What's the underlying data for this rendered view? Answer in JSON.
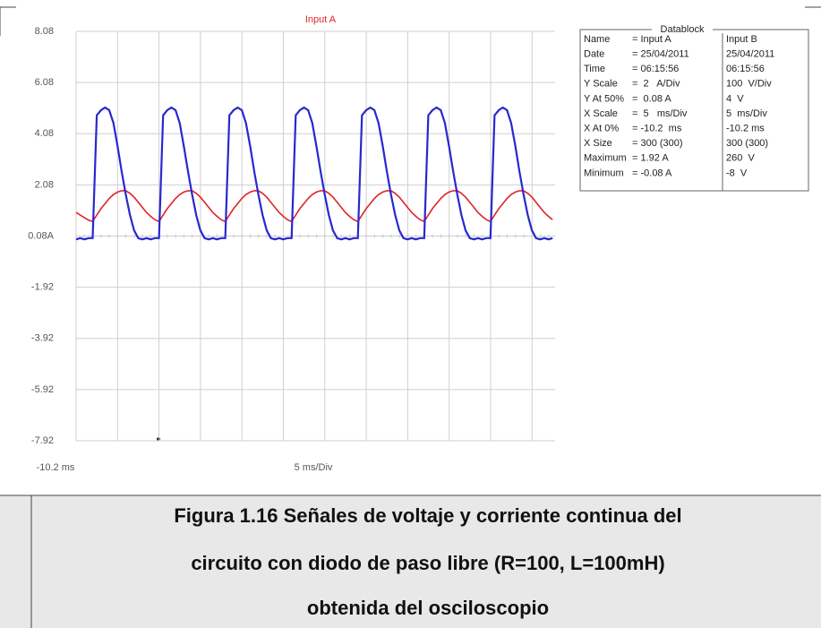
{
  "chart_data": {
    "type": "line",
    "title": "Input A",
    "x": [
      -10.2,
      -9.7,
      -9.2,
      -8.7,
      -8.2,
      -7.7,
      -7.2,
      -6.7,
      -6.2,
      -5.7,
      -5.2,
      -4.7,
      -4.2,
      -3.7,
      -3.2,
      -2.7,
      -2.2,
      -1.7,
      -1.2,
      -0.7,
      -0.2,
      0.3,
      0.8,
      1.3,
      1.8,
      2.3,
      2.8,
      3.3,
      3.8,
      4.3,
      4.8,
      5.3,
      5.8,
      6.3,
      6.8,
      7.3,
      7.8,
      8.3,
      8.8,
      9.3,
      9.8,
      10.3,
      10.8,
      11.3,
      11.8,
      12.3,
      12.8,
      13.3,
      13.8,
      14.3,
      14.8,
      15.3,
      15.8,
      16.3,
      16.8,
      17.3,
      17.8,
      18.3,
      18.8,
      19.3,
      19.8,
      20.3,
      20.8,
      21.3,
      21.8,
      22.3,
      22.8,
      23.3,
      23.8,
      24.3,
      24.8,
      25.3,
      25.8,
      26.3,
      26.8,
      27.3,
      27.8,
      28.3,
      28.8,
      29.3,
      29.8,
      30.3,
      30.8,
      31.3,
      31.8,
      32.3,
      32.8,
      33.3,
      33.8,
      34.3,
      34.8,
      35.3,
      35.8,
      36.3,
      36.8,
      37.3,
      37.8,
      38.3,
      38.8,
      39.3,
      39.8,
      40.3,
      40.8,
      41.3,
      41.8,
      42.3,
      42.8,
      43.3,
      43.8,
      44.3,
      44.8,
      45.3,
      45.8,
      46.3,
      46.8,
      47.3
    ],
    "series": [
      {
        "name": "Input A",
        "color": "#e02424",
        "values": [
          1.0,
          0.9,
          0.8,
          0.7,
          0.65,
          0.9,
          1.15,
          1.35,
          1.55,
          1.7,
          1.8,
          1.85,
          1.85,
          1.75,
          1.6,
          1.4,
          1.2,
          1.0,
          0.85,
          0.72,
          0.65,
          0.9,
          1.15,
          1.35,
          1.55,
          1.7,
          1.8,
          1.85,
          1.85,
          1.75,
          1.6,
          1.4,
          1.2,
          1.0,
          0.85,
          0.72,
          0.65,
          0.9,
          1.15,
          1.35,
          1.55,
          1.7,
          1.8,
          1.85,
          1.85,
          1.75,
          1.6,
          1.4,
          1.2,
          1.0,
          0.85,
          0.72,
          0.65,
          0.9,
          1.15,
          1.35,
          1.55,
          1.7,
          1.8,
          1.85,
          1.85,
          1.75,
          1.6,
          1.4,
          1.2,
          1.0,
          0.85,
          0.72,
          0.65,
          0.9,
          1.15,
          1.35,
          1.55,
          1.7,
          1.8,
          1.85,
          1.85,
          1.75,
          1.6,
          1.4,
          1.2,
          1.0,
          0.85,
          0.72,
          0.65,
          0.9,
          1.15,
          1.35,
          1.55,
          1.7,
          1.8,
          1.85,
          1.85,
          1.75,
          1.6,
          1.4,
          1.2,
          1.0,
          0.85,
          0.72,
          0.65,
          0.9,
          1.15,
          1.35,
          1.55,
          1.7,
          1.8,
          1.85,
          1.85,
          1.75,
          1.6,
          1.4,
          1.2,
          1.0,
          0.85,
          0.72
        ]
      },
      {
        "name": "Input B",
        "color": "#2828d0",
        "values": [
          -0.05,
          0.0,
          -0.05,
          0.0,
          0.0,
          4.8,
          5.0,
          5.1,
          5.0,
          4.5,
          3.6,
          2.6,
          1.7,
          0.9,
          0.3,
          0.0,
          -0.05,
          0.0,
          -0.05,
          0.0,
          0.0,
          4.8,
          5.0,
          5.1,
          5.0,
          4.5,
          3.6,
          2.6,
          1.7,
          0.9,
          0.3,
          0.0,
          -0.05,
          0.0,
          -0.05,
          0.0,
          0.0,
          4.8,
          5.0,
          5.1,
          5.0,
          4.5,
          3.6,
          2.6,
          1.7,
          0.9,
          0.3,
          0.0,
          -0.05,
          0.0,
          -0.05,
          0.0,
          0.0,
          4.8,
          5.0,
          5.1,
          5.0,
          4.5,
          3.6,
          2.6,
          1.7,
          0.9,
          0.3,
          0.0,
          -0.05,
          0.0,
          -0.05,
          0.0,
          0.0,
          4.8,
          5.0,
          5.1,
          5.0,
          4.5,
          3.6,
          2.6,
          1.7,
          0.9,
          0.3,
          0.0,
          -0.05,
          0.0,
          -0.05,
          0.0,
          0.0,
          4.8,
          5.0,
          5.1,
          5.0,
          4.5,
          3.6,
          2.6,
          1.7,
          0.9,
          0.3,
          0.0,
          -0.05,
          0.0,
          -0.05,
          0.0,
          0.0,
          4.8,
          5.0,
          5.1,
          5.0,
          4.5,
          3.6,
          2.6,
          1.7,
          0.9,
          0.3,
          0.0,
          -0.05,
          0.0,
          -0.05,
          0.0
        ]
      }
    ],
    "xlim": [
      -10.2,
      47.6
    ],
    "ylim": [
      -7.92,
      8.08
    ],
    "yticks": [
      8.08,
      6.08,
      4.08,
      2.08,
      {
        "value": 0.08,
        "label": "0.08A"
      },
      -1.92,
      -3.92,
      -5.92,
      -7.92
    ],
    "x_start_label": "-10.2 ms",
    "x_scale_label": "5 ms/Div",
    "grid": true,
    "datablock": {
      "title": "Datablock",
      "rows": [
        [
          "Name",
          "= Input A",
          "Input B"
        ],
        [
          "Date",
          "= 25/04/2011",
          "25/04/2011"
        ],
        [
          "Time",
          "= 06:15:56",
          "06:15:56"
        ],
        [
          "Y Scale",
          "=  2   A/Div",
          "100  V/Div"
        ],
        [
          "Y At 50%",
          "=  0.08 A",
          "4  V"
        ],
        [
          "X Scale",
          "=  5   ms/Div",
          "5  ms/Div"
        ],
        [
          "X At 0%",
          "= -10.2  ms",
          "-10.2 ms"
        ],
        [
          "X Size",
          "= 300 (300)",
          "300 (300)"
        ],
        [
          "Maximum",
          "= 1.92 A",
          "260  V"
        ],
        [
          "Minimum",
          "= -0.08 A",
          "-8  V"
        ]
      ]
    }
  },
  "caption": [
    "Figura 1.16   Señales de voltaje y corriente continua del",
    "circuito con diodo de paso libre (R=100, L=100mH)",
    "obtenida del osciloscopio"
  ]
}
